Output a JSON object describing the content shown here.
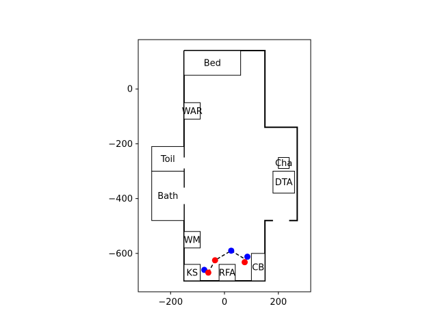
{
  "chart_data": {
    "type": "scatter",
    "title": "",
    "xlabel": "",
    "ylabel": "",
    "xlim": [
      -320,
      320
    ],
    "ylim": [
      -740,
      180
    ],
    "grid": false,
    "x_ticks": [
      -200,
      0,
      200
    ],
    "x_tick_labels": [
      "−200",
      "0",
      "200"
    ],
    "y_ticks": [
      0,
      -200,
      -400,
      -600
    ],
    "y_tick_labels": [
      "0",
      "−200",
      "−400",
      "−600"
    ],
    "room_outline": [
      [
        -150,
        140
      ],
      [
        150,
        140
      ],
      [
        150,
        -140
      ],
      [
        270,
        -140
      ],
      [
        270,
        -480
      ],
      [
        150,
        -480
      ],
      [
        150,
        -700
      ],
      [
        -150,
        -700
      ],
      [
        -150,
        140
      ]
    ],
    "furniture": [
      {
        "label": "Bed",
        "x0": -150,
        "y0": 50,
        "x1": 60,
        "y1": 140
      },
      {
        "label": "WAR",
        "x0": -150,
        "y0": -110,
        "x1": -90,
        "y1": -50
      },
      {
        "label": "Toil",
        "x0": -270,
        "y0": -300,
        "x1": -150,
        "y1": -210
      },
      {
        "label": "Bath",
        "x0": -270,
        "y0": -480,
        "x1": -150,
        "y1": -300
      },
      {
        "label": "Cha",
        "x0": 200,
        "y0": -290,
        "x1": 240,
        "y1": -250
      },
      {
        "label": "DTA",
        "x0": 180,
        "y0": -380,
        "x1": 260,
        "y1": -300
      },
      {
        "label": "WM",
        "x0": -150,
        "y0": -580,
        "x1": -90,
        "y1": -520
      },
      {
        "label": "KS",
        "x0": -150,
        "y0": -700,
        "x1": -90,
        "y1": -640
      },
      {
        "label": "RFA",
        "x0": -20,
        "y0": -700,
        "x1": 40,
        "y1": -640
      },
      {
        "label": "CB",
        "x0": 100,
        "y0": -700,
        "x1": 150,
        "y1": -600
      }
    ],
    "doors": [
      {
        "x0": -150,
        "y0": -250,
        "x1": -150,
        "y1": -290
      },
      {
        "x0": -150,
        "y0": -360,
        "x1": -150,
        "y1": -420
      },
      {
        "x0": 180,
        "y0": -480,
        "x1": 240,
        "y1": -480
      }
    ],
    "path": [
      [
        -60,
        -670
      ],
      [
        -35,
        -625
      ],
      [
        25,
        -590
      ],
      [
        75,
        -620
      ],
      [
        85,
        -612
      ]
    ],
    "series": [
      {
        "color": "#0000ff",
        "points": [
          [
            -75,
            -660
          ],
          [
            25,
            -590
          ],
          [
            85,
            -612
          ]
        ]
      },
      {
        "color": "#ff0000",
        "points": [
          [
            -60,
            -670
          ],
          [
            -35,
            -625
          ],
          [
            75,
            -632
          ]
        ]
      }
    ],
    "colors": {
      "wall": "#000000",
      "path": "#000000",
      "background": "#ffffff"
    }
  }
}
